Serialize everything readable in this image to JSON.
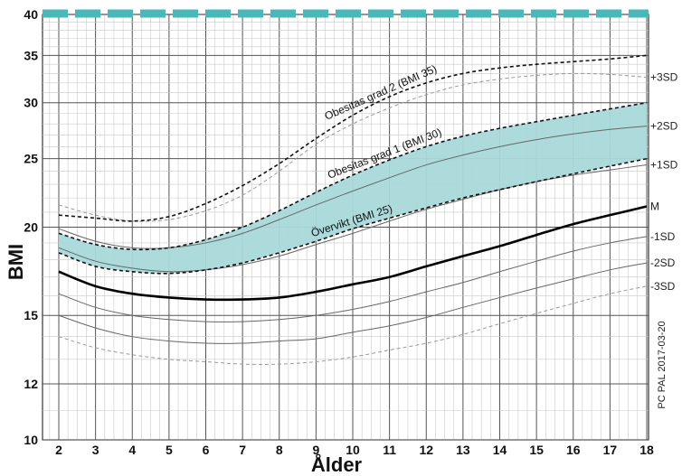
{
  "chart_data": {
    "type": "line",
    "title": "",
    "xlabel": "Ålder",
    "ylabel": "BMI",
    "xlim": [
      1.5,
      18.2
    ],
    "ylim": [
      10,
      40
    ],
    "y_scale": "log",
    "x_ticks": [
      2,
      3,
      4,
      5,
      6,
      7,
      8,
      9,
      10,
      11,
      12,
      13,
      14,
      15,
      16,
      17,
      18
    ],
    "y_ticks": [
      10,
      12,
      15,
      20,
      25,
      30,
      35,
      40
    ],
    "grid": true,
    "x": [
      2,
      3,
      4,
      5,
      6,
      7,
      8,
      9,
      10,
      11,
      12,
      13,
      14,
      15,
      16,
      17,
      18
    ],
    "series": [
      {
        "name": "+3SD",
        "style": "thin-dashed-grey",
        "values": [
          21.5,
          20.8,
          20.4,
          20.5,
          21.1,
          22.2,
          24.0,
          26.2,
          28.0,
          29.5,
          30.8,
          31.8,
          32.4,
          32.8,
          33.0,
          32.9,
          32.6
        ]
      },
      {
        "name": "+2SD",
        "style": "thin-solid",
        "values": [
          19.9,
          19.1,
          18.7,
          18.7,
          19.0,
          19.6,
          20.5,
          21.5,
          22.5,
          23.5,
          24.5,
          25.3,
          26.0,
          26.6,
          27.1,
          27.5,
          27.8
        ]
      },
      {
        "name": "+1SD",
        "style": "thin-solid",
        "values": [
          18.7,
          17.9,
          17.5,
          17.3,
          17.4,
          17.7,
          18.2,
          18.9,
          19.6,
          20.4,
          21.2,
          21.9,
          22.6,
          23.2,
          23.7,
          24.1,
          24.5
        ]
      },
      {
        "name": "M",
        "style": "thick-solid",
        "values": [
          17.3,
          16.5,
          16.1,
          15.9,
          15.8,
          15.8,
          15.9,
          16.2,
          16.6,
          17.0,
          17.6,
          18.2,
          18.8,
          19.5,
          20.2,
          20.8,
          21.4
        ]
      },
      {
        "name": "-1SD",
        "style": "thin-solid",
        "values": [
          16.1,
          15.4,
          15.0,
          14.8,
          14.7,
          14.7,
          14.8,
          15.0,
          15.3,
          15.7,
          16.2,
          16.7,
          17.3,
          17.9,
          18.5,
          19.0,
          19.4
        ]
      },
      {
        "name": "-2SD",
        "style": "thin-solid",
        "values": [
          15.0,
          14.4,
          14.0,
          13.8,
          13.7,
          13.7,
          13.8,
          13.9,
          14.2,
          14.5,
          14.9,
          15.4,
          15.9,
          16.4,
          16.9,
          17.4,
          17.8
        ]
      },
      {
        "name": "-3SD",
        "style": "thin-dashed-grey",
        "values": [
          14.0,
          13.5,
          13.2,
          13.0,
          12.9,
          12.8,
          12.8,
          12.9,
          13.1,
          13.4,
          13.7,
          14.1,
          14.6,
          15.1,
          15.6,
          16.1,
          16.5
        ]
      },
      {
        "name": "Obesitas grad 2 (BMI 35)",
        "style": "thick-dashed",
        "values": [
          20.8,
          20.6,
          20.4,
          20.7,
          21.6,
          22.9,
          24.6,
          26.7,
          28.8,
          30.6,
          32.0,
          33.0,
          33.6,
          34.0,
          34.3,
          34.6,
          35.0
        ]
      },
      {
        "name": "Obesitas grad 1 (BMI 30)",
        "style": "thick-dashed",
        "values": [
          19.6,
          18.9,
          18.6,
          18.7,
          19.2,
          20.0,
          21.1,
          22.4,
          23.7,
          24.9,
          26.0,
          26.9,
          27.6,
          28.2,
          28.8,
          29.4,
          30.0
        ]
      },
      {
        "name": "Övervikt (BMI 25)",
        "style": "thick-dashed",
        "values": [
          18.4,
          17.6,
          17.3,
          17.2,
          17.4,
          17.8,
          18.4,
          19.1,
          19.9,
          20.6,
          21.3,
          22.0,
          22.6,
          23.2,
          23.8,
          24.4,
          25.0
        ]
      }
    ],
    "band": {
      "lower_series": "Övervikt (BMI 25)",
      "upper_series": "Obesitas grad 1 (BMI 30)",
      "color": "#a9d9d9"
    },
    "sd_labels": [
      "+3SD",
      "+2SD",
      "+1SD",
      "M",
      "-1SD",
      "-2SD",
      "-3SD"
    ],
    "annotations": [
      "Obesitas grad 2 (BMI 35)",
      "Obesitas grad 1 (BMI 30)",
      "Övervikt (BMI 25)"
    ],
    "credit": "PC PAL 2017-03-20",
    "colors": {
      "band": "#a9d9d9",
      "top_strip": "#4ab8b8",
      "grid_major": "#555555",
      "grid_minor": "#c8c8c8"
    }
  }
}
